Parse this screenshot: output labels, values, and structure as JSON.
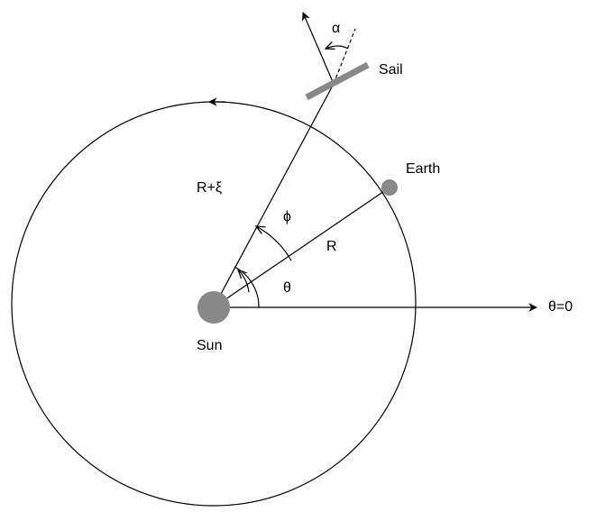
{
  "labels": {
    "alpha": "α",
    "sail": "Sail",
    "earth": "Earth",
    "r_plus_xi": "R+ξ",
    "phi": "ϕ",
    "r": "R",
    "theta": "θ",
    "sun": "Sun",
    "theta_zero": "θ=0"
  }
}
